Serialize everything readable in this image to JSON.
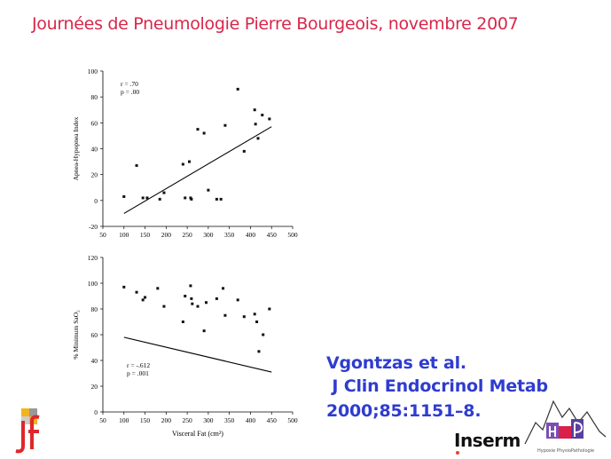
{
  "slide": {
    "title": "Journées de Pneumologie Pierre Bourgeois, novembre 2007",
    "citation": {
      "line1": "Vgontzas et al.",
      "line2": " J Clin Endocrinol Metab",
      "line3": "2000;85:1151–8."
    },
    "logos": {
      "inserm_text": "Inserm",
      "hp_caption": "Hypoxie PhysioPathologie"
    }
  },
  "chart_data": [
    {
      "type": "scatter",
      "title": "",
      "xlabel": "",
      "ylabel": "Apnea-Hypopnea Index",
      "xlim": [
        50,
        500
      ],
      "ylim": [
        -20,
        100
      ],
      "xticks": [
        "50",
        "100",
        "150",
        "200",
        "250",
        "300",
        "350",
        "400",
        "450",
        "500"
      ],
      "yticks": [
        "100",
        "80",
        "60",
        "40",
        "20",
        "0",
        "-20"
      ],
      "annotation": [
        "r = .70",
        "p = .00"
      ],
      "points": [
        [
          100,
          3
        ],
        [
          130,
          27
        ],
        [
          145,
          2
        ],
        [
          155,
          2
        ],
        [
          185,
          1
        ],
        [
          195,
          6
        ],
        [
          240,
          28
        ],
        [
          245,
          2
        ],
        [
          255,
          30
        ],
        [
          258,
          2
        ],
        [
          260,
          1
        ],
        [
          275,
          55
        ],
        [
          290,
          52
        ],
        [
          300,
          8
        ],
        [
          320,
          1
        ],
        [
          330,
          1
        ],
        [
          340,
          58
        ],
        [
          370,
          86
        ],
        [
          385,
          38
        ],
        [
          410,
          70
        ],
        [
          412,
          59
        ],
        [
          418,
          48
        ],
        [
          428,
          66
        ],
        [
          445,
          63
        ]
      ],
      "trendline": [
        [
          100,
          -10
        ],
        [
          450,
          57
        ]
      ]
    },
    {
      "type": "scatter",
      "title": "",
      "xlabel": "Visceral Fat (cm²)",
      "ylabel": "% Minimum SaO₂",
      "xlim": [
        50,
        500
      ],
      "ylim": [
        0,
        120
      ],
      "xticks": [
        "50",
        "100",
        "150",
        "200",
        "250",
        "300",
        "350",
        "400",
        "450",
        "500"
      ],
      "yticks": [
        "120",
        "100",
        "80",
        "60",
        "40",
        "20",
        "0"
      ],
      "annotation": [
        "r = -.612",
        "p = .001"
      ],
      "points": [
        [
          100,
          97
        ],
        [
          130,
          93
        ],
        [
          145,
          87
        ],
        [
          150,
          89
        ],
        [
          180,
          96
        ],
        [
          195,
          82
        ],
        [
          240,
          70
        ],
        [
          245,
          90
        ],
        [
          258,
          98
        ],
        [
          260,
          88
        ],
        [
          262,
          84
        ],
        [
          275,
          82
        ],
        [
          290,
          63
        ],
        [
          295,
          85
        ],
        [
          320,
          88
        ],
        [
          335,
          96
        ],
        [
          340,
          75
        ],
        [
          370,
          87
        ],
        [
          385,
          74
        ],
        [
          410,
          76
        ],
        [
          415,
          70
        ],
        [
          420,
          47
        ],
        [
          430,
          60
        ],
        [
          445,
          80
        ]
      ],
      "trendline": [
        [
          100,
          58
        ],
        [
          450,
          31
        ]
      ]
    }
  ]
}
